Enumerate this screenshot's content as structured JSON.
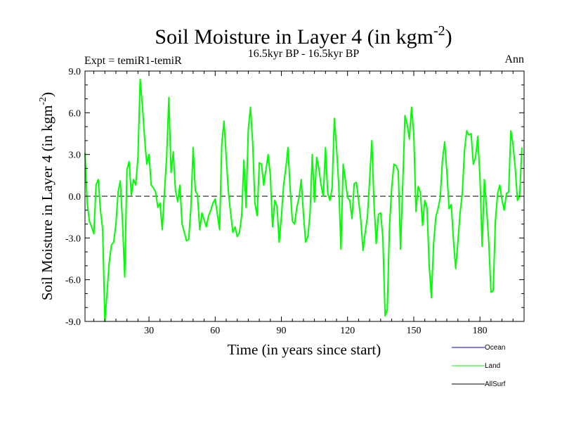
{
  "chart_data": {
    "type": "line",
    "title_main": "Soil Moisture in Layer 4 (in kgm",
    "title_sup": "-2",
    "title_close": ")",
    "subtitle": "16.5kyr BP - 16.5kyr BP",
    "left_label": "Expt = temiR1-temiR",
    "right_label": "Ann",
    "xlabel": "Time (in years since start)",
    "ylabel_main": "Soil Moisture in Layer 4 (in kgm",
    "ylabel_sup": "-2",
    "ylabel_close": ")",
    "xlim": [
      1,
      200
    ],
    "ylim": [
      -9,
      9
    ],
    "xticks": [
      30,
      60,
      90,
      120,
      150,
      180
    ],
    "xtick_labels": [
      "30",
      "60",
      "90",
      "120",
      "150",
      "180"
    ],
    "yticks": [
      -9,
      -6,
      -3,
      0,
      3,
      6,
      9
    ],
    "ytick_labels": [
      "-9.0",
      "-6.0",
      "-3.0",
      "0.0",
      "3.0",
      "6.0",
      "9.0"
    ],
    "zero_line": 0,
    "legend": [
      {
        "name": "Ocean",
        "color": "#0000ff"
      },
      {
        "name": "Land",
        "color": "#00ff00"
      },
      {
        "name": "AllSurf",
        "color": "#000000"
      }
    ],
    "series": [
      {
        "name": "Land",
        "color": "#00ff00",
        "x_start": 1,
        "x_step": 1,
        "values": [
          3.1,
          -0.5,
          -1.8,
          -2.2,
          -2.7,
          0.8,
          1.2,
          -1.0,
          -2.4,
          -9.0,
          -6.9,
          -4.7,
          -3.5,
          -3.3,
          -2.0,
          0.3,
          1.1,
          -1.9,
          -5.8,
          1.9,
          2.5,
          0.1,
          1.2,
          0.8,
          2.8,
          8.4,
          6.5,
          4.2,
          2.3,
          3.0,
          0.8,
          0.6,
          0.3,
          -0.8,
          -0.5,
          -2.4,
          0.3,
          2.8,
          7.1,
          1.7,
          3.2,
          0.4,
          -0.4,
          0.8,
          -2.0,
          -2.6,
          -3.2,
          -3.1,
          -0.8,
          3.5,
          0.4,
          0.1,
          -2.4,
          -1.2,
          -1.7,
          -2.2,
          -1.4,
          -1.0,
          -0.5,
          -0.2,
          -1.3,
          -2.4,
          3.8,
          5.4,
          2.8,
          0.3,
          -1.2,
          -2.6,
          -2.2,
          -2.9,
          -2.6,
          -1.4,
          2.6,
          -0.8,
          4.8,
          6.4,
          3.8,
          -0.5,
          -1.4,
          2.4,
          2.3,
          0.8,
          1.9,
          3.0,
          1.5,
          -2.2,
          -0.3,
          -0.7,
          -3.3,
          -1.5,
          0.8,
          2.0,
          3.5,
          0.5,
          -1.8,
          -2.0,
          -0.8,
          -0.1,
          1.2,
          -1.3,
          -3.3,
          -2.9,
          -1.2,
          3.0,
          -0.4,
          2.8,
          2.0,
          0.8,
          0.0,
          3.5,
          0.2,
          -0.3,
          0.6,
          5.6,
          3.5,
          0.8,
          -3.8,
          2.3,
          1.2,
          -0.1,
          -0.3,
          -1.6,
          0.9,
          1.0,
          -0.3,
          -1.7,
          -3.9,
          -2.6,
          -1.5,
          1.2,
          4.0,
          -0.6,
          -3.4,
          -1.3,
          -1.2,
          -3.0,
          -8.6,
          -8.2,
          -2.2,
          0.6,
          2.3,
          2.2,
          1.8,
          -3.8,
          0.8,
          5.8,
          5.2,
          4.1,
          6.4,
          4.5,
          -1.1,
          0.7,
          0.3,
          -2.1,
          -0.3,
          -0.8,
          -5.0,
          -7.3,
          -3.4,
          -1.5,
          -0.9,
          -0.1,
          2.6,
          3.9,
          1.8,
          -0.9,
          -0.6,
          -3.2,
          -5.2,
          -3.3,
          -1.2,
          0.2,
          3.3,
          4.7,
          4.4,
          4.5,
          2.3,
          2.8,
          4.3,
          1.4,
          -3.6,
          1.2,
          -0.9,
          -3.3,
          -6.9,
          -6.8,
          -1.8,
          0.2,
          0.8,
          -0.3,
          -1.0,
          0.2,
          0.3,
          4.7,
          3.7,
          2.0,
          -0.3,
          0.0,
          3.5
        ]
      }
    ]
  }
}
